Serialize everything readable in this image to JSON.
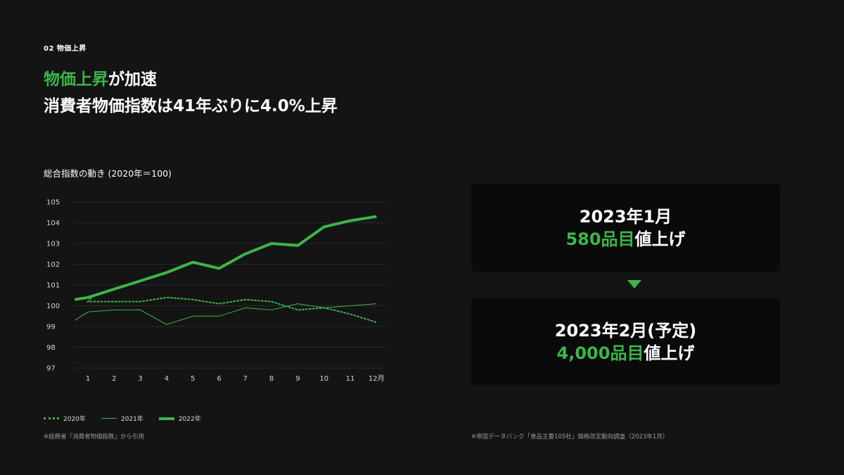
{
  "section_label": "02 物価上昇",
  "headline": {
    "line1_accent": "物価上昇",
    "line1_rest": "が加速",
    "line2": "消費者物価指数は41年ぶりに4.0%上昇"
  },
  "chart_title": "総合指数の動き (2020年＝100)",
  "chart_data": {
    "type": "line",
    "categories": [
      "1",
      "2",
      "3",
      "4",
      "5",
      "6",
      "7",
      "8",
      "9",
      "10",
      "11",
      "12月"
    ],
    "ylim": [
      97,
      105
    ],
    "yticks": [
      97,
      98,
      99,
      100,
      101,
      102,
      103,
      104,
      105
    ],
    "grid": true,
    "legend": "bottom-left",
    "series": [
      {
        "name": "2020年",
        "style": "dotted",
        "values": [
          100.2,
          100.2,
          100.2,
          100.4,
          100.3,
          100.1,
          100.3,
          100.2,
          99.8,
          99.9,
          99.6,
          99.2
        ],
        "x_start": 0.2,
        "start_value": 100.5
      },
      {
        "name": "2021年",
        "style": "thin",
        "values": [
          99.7,
          99.8,
          99.8,
          99.1,
          99.5,
          99.5,
          99.9,
          99.8,
          100.1,
          99.9,
          100.0,
          100.1
        ],
        "x_start": -0.5,
        "start_value": 99.3
      },
      {
        "name": "2022年",
        "style": "thick",
        "values": [
          100.4,
          100.8,
          101.2,
          101.6,
          102.1,
          101.8,
          102.5,
          103.0,
          102.9,
          103.8,
          104.1,
          104.3
        ],
        "x_start": -0.5,
        "start_value": 100.3
      }
    ]
  },
  "footnote_left": "※総務省「消費者物価指数」から引用",
  "footnote_right": "※帝国データバンク「食品主要105社」価格改定動向調査（2023年1月）",
  "cards": [
    {
      "line1": "2023年1月",
      "highlight": "580品目",
      "suffix": "値上げ"
    },
    {
      "line1": "2023年2月(予定)",
      "highlight": "4,000品目",
      "suffix": "値上げ"
    }
  ],
  "colors": {
    "accent": "#3db54a",
    "background": "#141414",
    "card": "#0a0a0a"
  }
}
